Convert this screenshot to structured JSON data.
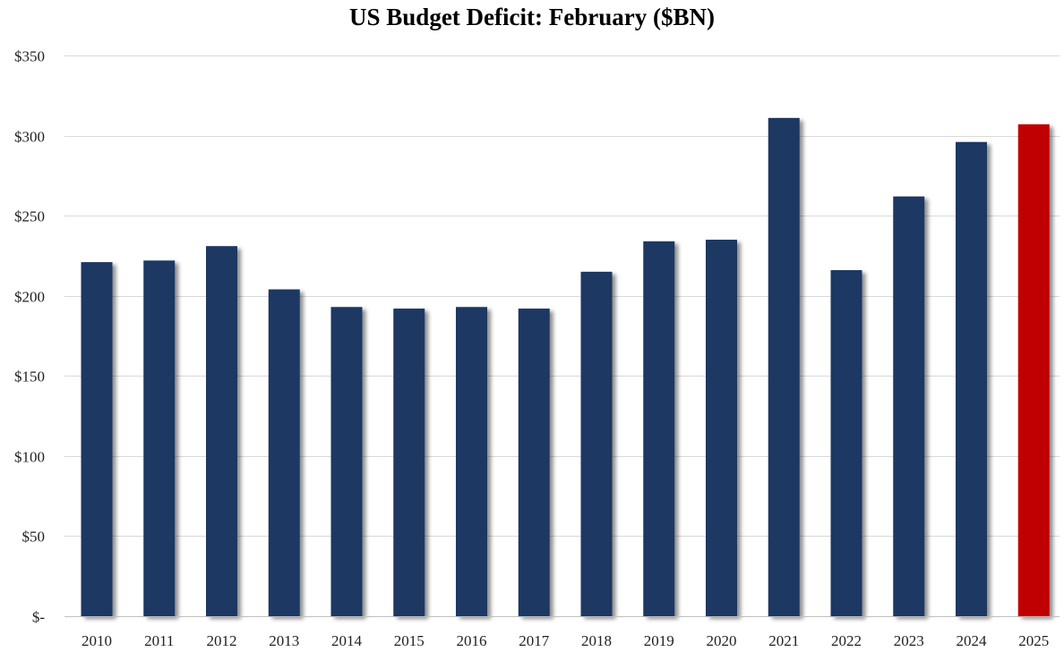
{
  "chart_data": {
    "type": "bar",
    "title": "US Budget Deficit: February ($BN)",
    "xlabel": "",
    "ylabel": "",
    "categories": [
      "2010",
      "2011",
      "2012",
      "2013",
      "2014",
      "2015",
      "2016",
      "2017",
      "2018",
      "2019",
      "2020",
      "2021",
      "2022",
      "2023",
      "2024",
      "2025"
    ],
    "values": [
      221,
      222,
      231,
      204,
      193,
      192,
      193,
      192,
      215,
      234,
      235,
      311,
      216,
      262,
      296,
      307
    ],
    "highlight_category": "2025",
    "ylim": [
      0,
      350
    ],
    "yticks": [
      0,
      50,
      100,
      150,
      200,
      250,
      300,
      350
    ],
    "ytick_labels": [
      "$-",
      "$50",
      "$100",
      "$150",
      "$200",
      "$250",
      "$300",
      "$350"
    ],
    "grid": true,
    "legend": "none",
    "colors": {
      "bar": "#1f3864",
      "highlight": "#c00000",
      "grid": "#d9d9d9",
      "axis": "#bfbfbf",
      "shadow": "#bdbdbd"
    }
  }
}
